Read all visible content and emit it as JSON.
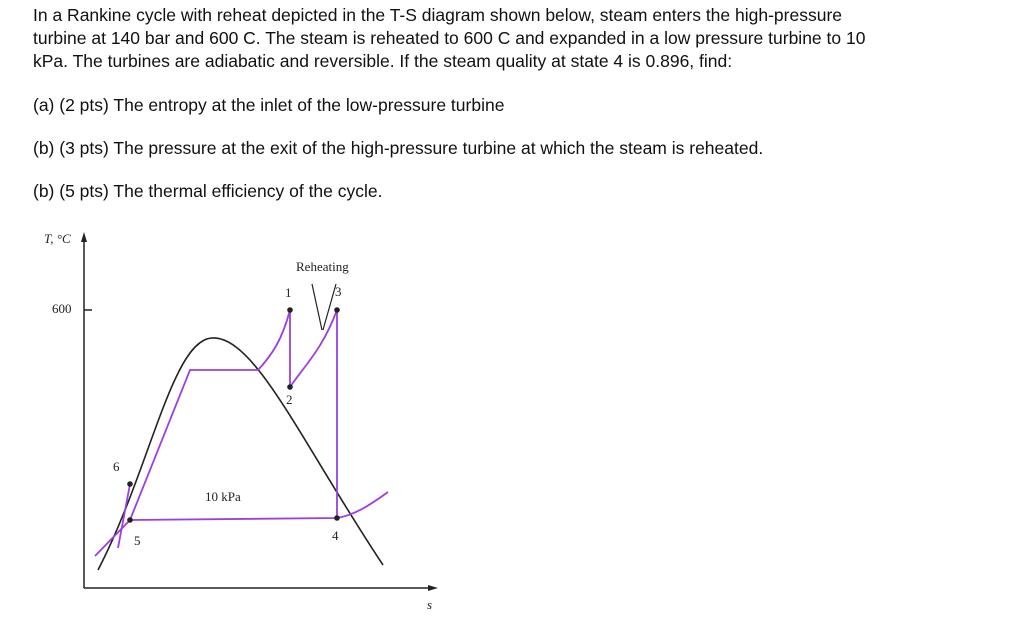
{
  "problem": {
    "lines": [
      "In a Rankine cycle with reheat depicted in the T-S diagram shown below, steam enters the high-pressure",
      "turbine at 140 bar and 600 C. The steam is reheated to 600 C and expanded in a low pressure turbine to 10",
      "kPa.  The turbines are adiabatic and reversible.  If the steam quality at state 4 is 0.896, find:"
    ]
  },
  "questions": [
    "(a) (2 pts) The entropy at the inlet of the low-pressure turbine",
    "(b) (3 pts) The pressure at the exit of the high-pressure turbine at which the steam is reheated.",
    "(b) (5 pts) The thermal efficiency of the cycle."
  ],
  "diagram": {
    "y_axis_label": "T, °C",
    "x_axis_label": "s",
    "tick_label": "600",
    "reheating_label": "Reheating",
    "pressure_label": "10 kPa",
    "state_labels": [
      "1",
      "2",
      "3",
      "4",
      "5",
      "6"
    ]
  }
}
